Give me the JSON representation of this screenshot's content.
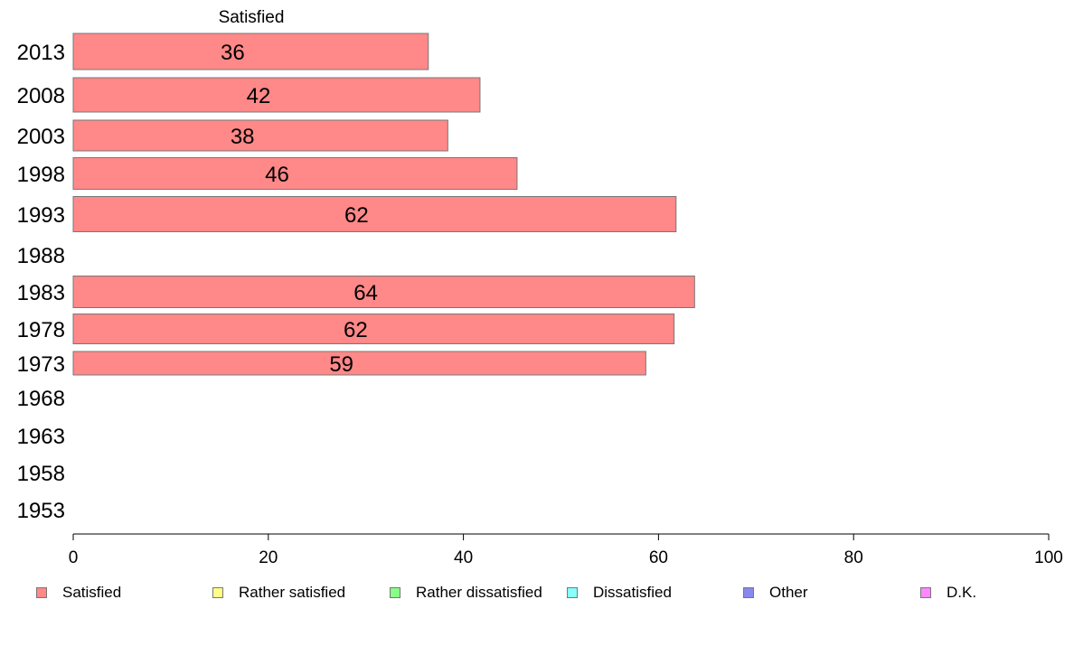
{
  "chart_data": {
    "type": "bar",
    "orientation": "horizontal",
    "title": "",
    "series_title": "Satisfied",
    "xlabel": "",
    "ylabel": "",
    "xlim": [
      0,
      100
    ],
    "x_ticks": [
      0,
      20,
      40,
      60,
      80,
      100
    ],
    "grid": false,
    "categories": [
      "2013",
      "2008",
      "2003",
      "1998",
      "1993",
      "1988",
      "1983",
      "1978",
      "1973",
      "1968",
      "1963",
      "1958",
      "1953"
    ],
    "series": [
      {
        "name": "Satisfied",
        "color": "#ff8888",
        "values": [
          36.4,
          41.7,
          38.4,
          45.5,
          61.8,
          null,
          63.7,
          61.6,
          58.7,
          null,
          null,
          null,
          null
        ],
        "labels": [
          "36",
          "42",
          "38",
          "46",
          "62",
          "",
          "64",
          "62",
          "59",
          "",
          "",
          "",
          ""
        ]
      }
    ],
    "legend_position": "bottom",
    "legend": [
      {
        "name": "Satisfied",
        "color": "#ff8888"
      },
      {
        "name": "Rather satisfied",
        "color": "#ffff88"
      },
      {
        "name": "Rather dissatisfied",
        "color": "#88ff88"
      },
      {
        "name": "Dissatisfied",
        "color": "#88ffff"
      },
      {
        "name": "Other",
        "color": "#8888ee"
      },
      {
        "name": "D.K.",
        "color": "#ff88ff"
      }
    ]
  }
}
